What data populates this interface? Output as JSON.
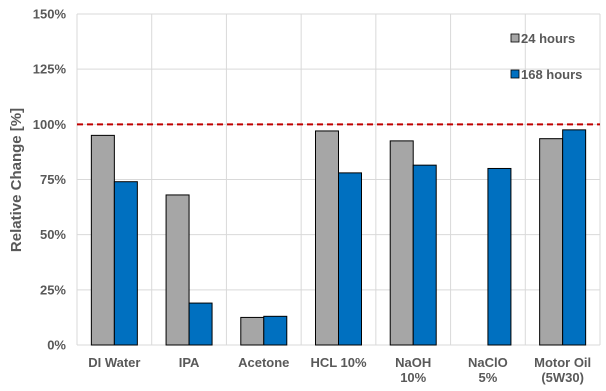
{
  "chart_data": {
    "type": "bar",
    "categories": [
      [
        "DI Water"
      ],
      [
        "IPA"
      ],
      [
        "Acetone"
      ],
      [
        "HCL 10%"
      ],
      [
        "NaOH",
        "10%"
      ],
      [
        "NaClO",
        "5%"
      ],
      [
        "Motor Oil",
        "(5W30)"
      ]
    ],
    "series": [
      {
        "name": "24 hours",
        "values": [
          95,
          68,
          12.5,
          97,
          92.5,
          null,
          93.5
        ],
        "color": "#a6a6a6"
      },
      {
        "name": "168 hours",
        "values": [
          74,
          19,
          13,
          78,
          81.5,
          80,
          97.5
        ],
        "color": "#0070c0"
      }
    ],
    "ylabel": "Relative Change [%]",
    "xlabel": "",
    "ylim": [
      0,
      150
    ],
    "yticks": [
      0,
      25,
      50,
      75,
      100,
      125,
      150
    ],
    "ytick_labels": [
      "0%",
      "25%",
      "50%",
      "75%",
      "100%",
      "125%",
      "150%"
    ],
    "reference_line": {
      "value": 100,
      "style": "dashed",
      "color": "#c00000"
    },
    "grid": true,
    "legend_position": "top-right"
  }
}
